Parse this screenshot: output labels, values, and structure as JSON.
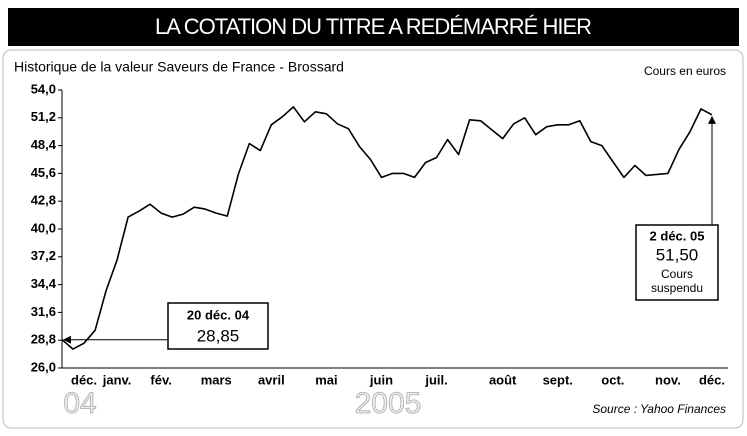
{
  "chart_data": {
    "type": "line",
    "title": "LA COTATION DU TITRE A REDÉMARRÉ HIER",
    "subtitle": "Historique de la valeur Saveurs de France - Brossard",
    "unit_label": "Cours en euros",
    "source": "Source : Yahoo Finances",
    "year_labels": [
      "04",
      "2005"
    ],
    "categories": [
      null,
      null,
      "déc.",
      null,
      null,
      "janv.",
      null,
      null,
      null,
      "fév.",
      null,
      null,
      null,
      null,
      "mars",
      null,
      null,
      null,
      null,
      "avril",
      null,
      null,
      null,
      null,
      "mai",
      null,
      null,
      null,
      null,
      "juin",
      null,
      null,
      null,
      null,
      "juil.",
      null,
      null,
      null,
      null,
      null,
      "août",
      null,
      null,
      null,
      null,
      "sept.",
      null,
      null,
      null,
      null,
      "oct.",
      null,
      null,
      null,
      null,
      "nov.",
      null,
      null,
      null,
      "déc."
    ],
    "series": [
      {
        "name": "Saveurs de France - Brossard",
        "color": "#000000",
        "values": [
          28.85,
          27.9,
          28.5,
          29.8,
          33.8,
          36.9,
          41.2,
          41.8,
          42.5,
          41.6,
          41.2,
          41.5,
          42.2,
          42.0,
          41.6,
          41.3,
          45.5,
          48.6,
          47.9,
          50.5,
          51.3,
          52.3,
          50.8,
          51.8,
          51.6,
          50.6,
          50.1,
          48.3,
          47.0,
          45.2,
          45.6,
          45.6,
          45.2,
          46.7,
          47.2,
          49.0,
          47.5,
          51.0,
          50.9,
          50.0,
          49.1,
          50.6,
          51.2,
          49.5,
          50.3,
          50.5,
          50.5,
          50.9,
          48.8,
          48.4,
          46.8,
          45.2,
          46.4,
          45.4,
          45.5,
          45.6,
          48.0,
          49.8,
          52.1,
          51.5
        ]
      }
    ],
    "annotations": [
      {
        "date": "20 déc. 04",
        "value_label": "28,85"
      },
      {
        "date": "2 déc. 05",
        "value_label": "51,50",
        "note": [
          "Cours",
          "suspendu"
        ]
      }
    ],
    "ylim": [
      26.0,
      54.0
    ],
    "yticks": [
      {
        "value": 26.0,
        "label": "26,0"
      },
      {
        "value": 28.8,
        "label": "28,8"
      },
      {
        "value": 31.6,
        "label": "31,6"
      },
      {
        "value": 34.4,
        "label": "34,4"
      },
      {
        "value": 37.2,
        "label": "37,2"
      },
      {
        "value": 40.0,
        "label": "40,0"
      },
      {
        "value": 42.8,
        "label": "42,8"
      },
      {
        "value": 45.6,
        "label": "45,6"
      },
      {
        "value": 48.4,
        "label": "48,4"
      },
      {
        "value": 51.2,
        "label": "51,2"
      },
      {
        "value": 54.0,
        "label": "54,0"
      }
    ],
    "grid": false
  }
}
